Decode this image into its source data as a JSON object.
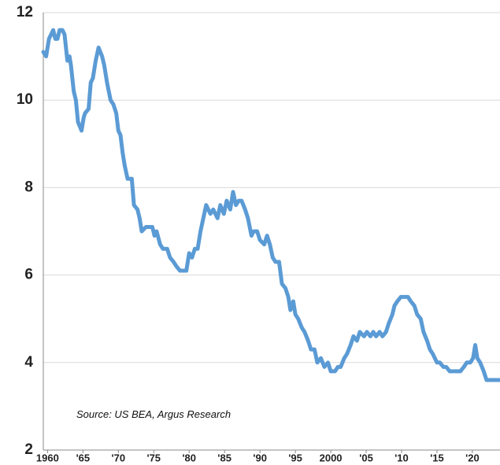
{
  "chart_data": {
    "type": "line",
    "annotation": "Source: US BEA, Argus Research",
    "color": "#5b9bd5",
    "x": [
      1959.4,
      1959.8,
      1960.2,
      1960.8,
      1961.1,
      1961.4,
      1961.7,
      1962.1,
      1962.4,
      1962.8,
      1963.1,
      1963.3,
      1963.7,
      1964.0,
      1964.3,
      1964.8,
      1965.1,
      1965.3,
      1965.8,
      1966.1,
      1966.4,
      1966.8,
      1967.2,
      1967.7,
      1968.0,
      1968.4,
      1968.9,
      1969.3,
      1969.7,
      1970.0,
      1970.3,
      1970.6,
      1970.9,
      1971.3,
      1971.9,
      1972.2,
      1972.7,
      1973.0,
      1973.3,
      1973.9,
      1974.8,
      1975.1,
      1975.4,
      1975.9,
      1976.3,
      1976.9,
      1977.3,
      1977.8,
      1978.2,
      1978.7,
      1979.6,
      1980.0,
      1980.4,
      1980.8,
      1981.2,
      1981.6,
      1982.0,
      1982.4,
      1983.0,
      1983.4,
      1984.0,
      1984.4,
      1984.9,
      1985.3,
      1985.8,
      1986.2,
      1986.6,
      1987.0,
      1987.4,
      1987.9,
      1988.3,
      1988.8,
      1989.1,
      1989.6,
      1990.0,
      1990.6,
      1991.0,
      1991.4,
      1991.8,
      1992.2,
      1992.7,
      1993.1,
      1993.6,
      1994.0,
      1994.3,
      1994.7,
      1995.0,
      1995.4,
      1995.9,
      1996.3,
      1996.8,
      1997.2,
      1997.7,
      1998.1,
      1998.6,
      1999.1,
      1999.6,
      2000.0,
      2000.6,
      2001.0,
      2001.4,
      2001.9,
      2002.3,
      2002.8,
      2003.2,
      2003.7,
      2004.1,
      2004.7,
      2005.1,
      2005.6,
      2006.0,
      2006.4,
      2006.9,
      2007.3,
      2007.8,
      2008.2,
      2008.7,
      2009.0,
      2009.4,
      2009.9,
      2010.9,
      2011.3,
      2011.8,
      2012.2,
      2012.7,
      2013.1,
      2013.6,
      2014.0,
      2014.4,
      2015.0,
      2015.4,
      2015.9,
      2016.3,
      2016.8,
      2018.3,
      2018.8,
      2019.2,
      2019.7,
      2020.1,
      2020.4,
      2020.7,
      2021.1,
      2021.6,
      2022.0,
      2023.9
    ],
    "values": [
      11.1,
      11.0,
      11.4,
      11.6,
      11.4,
      11.4,
      11.6,
      11.6,
      11.5,
      10.9,
      11.0,
      10.8,
      10.2,
      10.0,
      9.5,
      9.3,
      9.6,
      9.7,
      9.8,
      10.4,
      10.5,
      10.9,
      11.2,
      11.0,
      10.8,
      10.4,
      10.0,
      9.9,
      9.7,
      9.3,
      9.2,
      8.8,
      8.5,
      8.2,
      8.2,
      7.6,
      7.5,
      7.3,
      7.0,
      7.1,
      7.1,
      6.9,
      7.0,
      6.7,
      6.6,
      6.6,
      6.4,
      6.3,
      6.2,
      6.1,
      6.1,
      6.5,
      6.4,
      6.6,
      6.6,
      7.0,
      7.3,
      7.6,
      7.4,
      7.5,
      7.3,
      7.6,
      7.4,
      7.7,
      7.5,
      7.9,
      7.6,
      7.7,
      7.7,
      7.5,
      7.3,
      6.9,
      7.0,
      7.0,
      6.8,
      6.7,
      6.9,
      6.7,
      6.4,
      6.3,
      6.3,
      5.8,
      5.7,
      5.5,
      5.2,
      5.4,
      5.1,
      5.0,
      4.8,
      4.7,
      4.5,
      4.3,
      4.3,
      4.0,
      4.1,
      3.9,
      4.0,
      3.8,
      3.8,
      3.9,
      3.9,
      4.1,
      4.2,
      4.4,
      4.6,
      4.5,
      4.7,
      4.6,
      4.7,
      4.6,
      4.7,
      4.6,
      4.7,
      4.6,
      4.7,
      4.9,
      5.1,
      5.3,
      5.4,
      5.5,
      5.5,
      5.4,
      5.3,
      5.1,
      5.0,
      4.7,
      4.5,
      4.3,
      4.2,
      4.0,
      4.0,
      3.9,
      3.9,
      3.8,
      3.8,
      3.9,
      4.0,
      4.0,
      4.1,
      4.4,
      4.1,
      4.0,
      3.8,
      3.6,
      3.6
    ],
    "xlim": [
      1959.4,
      2023.9
    ],
    "xticks": [
      1960,
      {
        "value": 1965,
        "label": "'65"
      },
      {
        "value": 1970,
        "label": "'70"
      },
      {
        "value": 1975,
        "label": "'75"
      },
      {
        "value": 1980,
        "label": "'80"
      },
      {
        "value": 1985,
        "label": "'85"
      },
      {
        "value": 1990,
        "label": "'90"
      },
      {
        "value": 1995,
        "label": "'95"
      },
      2000,
      {
        "value": 2005,
        "label": "'05"
      },
      {
        "value": 2010,
        "label": "'10"
      },
      {
        "value": 2015,
        "label": "'15"
      },
      {
        "value": 2020,
        "label": "'20"
      }
    ],
    "ylim": [
      2,
      12
    ],
    "yticks": [
      2,
      4,
      6,
      8,
      10,
      12
    ],
    "grid": true
  }
}
